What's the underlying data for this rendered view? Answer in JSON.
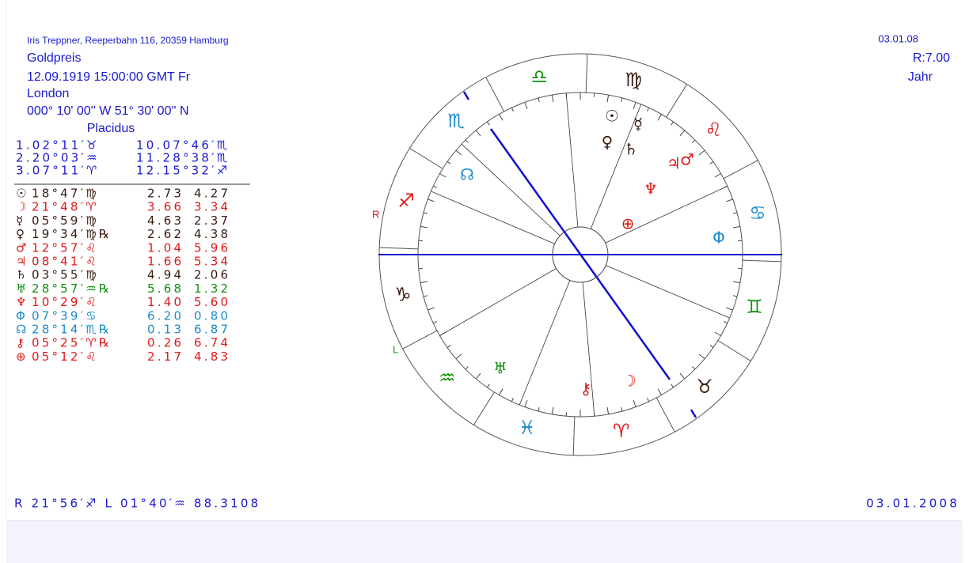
{
  "header": {
    "address": "Iris Treppner, Reeperbahn 116, 20359 Hamburg",
    "name": "Goldpreis",
    "datetime": "12.09.1919  15:00:00  GMT Fr",
    "place": "London",
    "coords": "000° 10' 00'' W   51° 30' 00'' N",
    "house_system": "Placidus"
  },
  "top_right": {
    "date": "03.01.08",
    "r": "R:7.00",
    "period": "Jahr"
  },
  "houses": [
    [
      "1.02°11′♉",
      "10.07°46′♏"
    ],
    [
      "2.20°03′♒",
      "11.28°38′♏"
    ],
    [
      "3.07°11′♈",
      "12.15°32′♐"
    ]
  ],
  "planets": [
    {
      "symbol": "☉",
      "position": "18°47′♍",
      "a": "2.73",
      "b": "4.27",
      "color": "#3a1a10"
    },
    {
      "symbol": "☽",
      "position": "21°48′♈",
      "a": "3.66",
      "b": "3.34",
      "color": "#e01818"
    },
    {
      "symbol": "☿",
      "position": "05°59′♍",
      "a": "4.63",
      "b": "2.37",
      "color": "#3a1a10"
    },
    {
      "symbol": "♀",
      "position": "19°34′♍℞",
      "a": "2.62",
      "b": "4.38",
      "color": "#3a1a10"
    },
    {
      "symbol": "♂",
      "position": "12°57′♌",
      "a": "1.04",
      "b": "5.96",
      "color": "#e01818"
    },
    {
      "symbol": "♃",
      "position": "08°41′♌",
      "a": "1.66",
      "b": "5.34",
      "color": "#e01818"
    },
    {
      "symbol": "♄",
      "position": "03°55′♍",
      "a": "4.94",
      "b": "2.06",
      "color": "#3a1a10"
    },
    {
      "symbol": "♅",
      "position": "28°57′♒℞",
      "a": "5.68",
      "b": "1.32",
      "color": "#109010"
    },
    {
      "symbol": "♆",
      "position": "10°29′♌",
      "a": "1.40",
      "b": "5.60",
      "color": "#e01818"
    },
    {
      "symbol": "Φ",
      "position": "07°39′♋",
      "a": "6.20",
      "b": "0.80",
      "color": "#1a8ac8"
    },
    {
      "symbol": "☊",
      "position": "28°14′♏℞",
      "a": "0.13",
      "b": "6.87",
      "color": "#1a8ac8"
    },
    {
      "symbol": "⚷",
      "position": "05°25′♈℞",
      "a": "0.26",
      "b": "6.74",
      "color": "#e01818"
    },
    {
      "symbol": "⊕",
      "position": "05°12′♌",
      "a": "2.17",
      "b": "4.83",
      "color": "#e01818"
    }
  ],
  "wheel": {
    "signs": [
      "♈",
      "♉",
      "♊",
      "♋",
      "♌",
      "♍",
      "♎",
      "♏",
      "♐",
      "♑",
      "♒",
      "♓"
    ],
    "sign_colors": [
      "#e01818",
      "#3a1a10",
      "#109010",
      "#1a8ac8"
    ],
    "r_label": "R",
    "l_label": "L"
  },
  "footer": {
    "left": "R 21°56′♐  L 01°40′♒  88.3108",
    "right": "03.01.2008"
  }
}
